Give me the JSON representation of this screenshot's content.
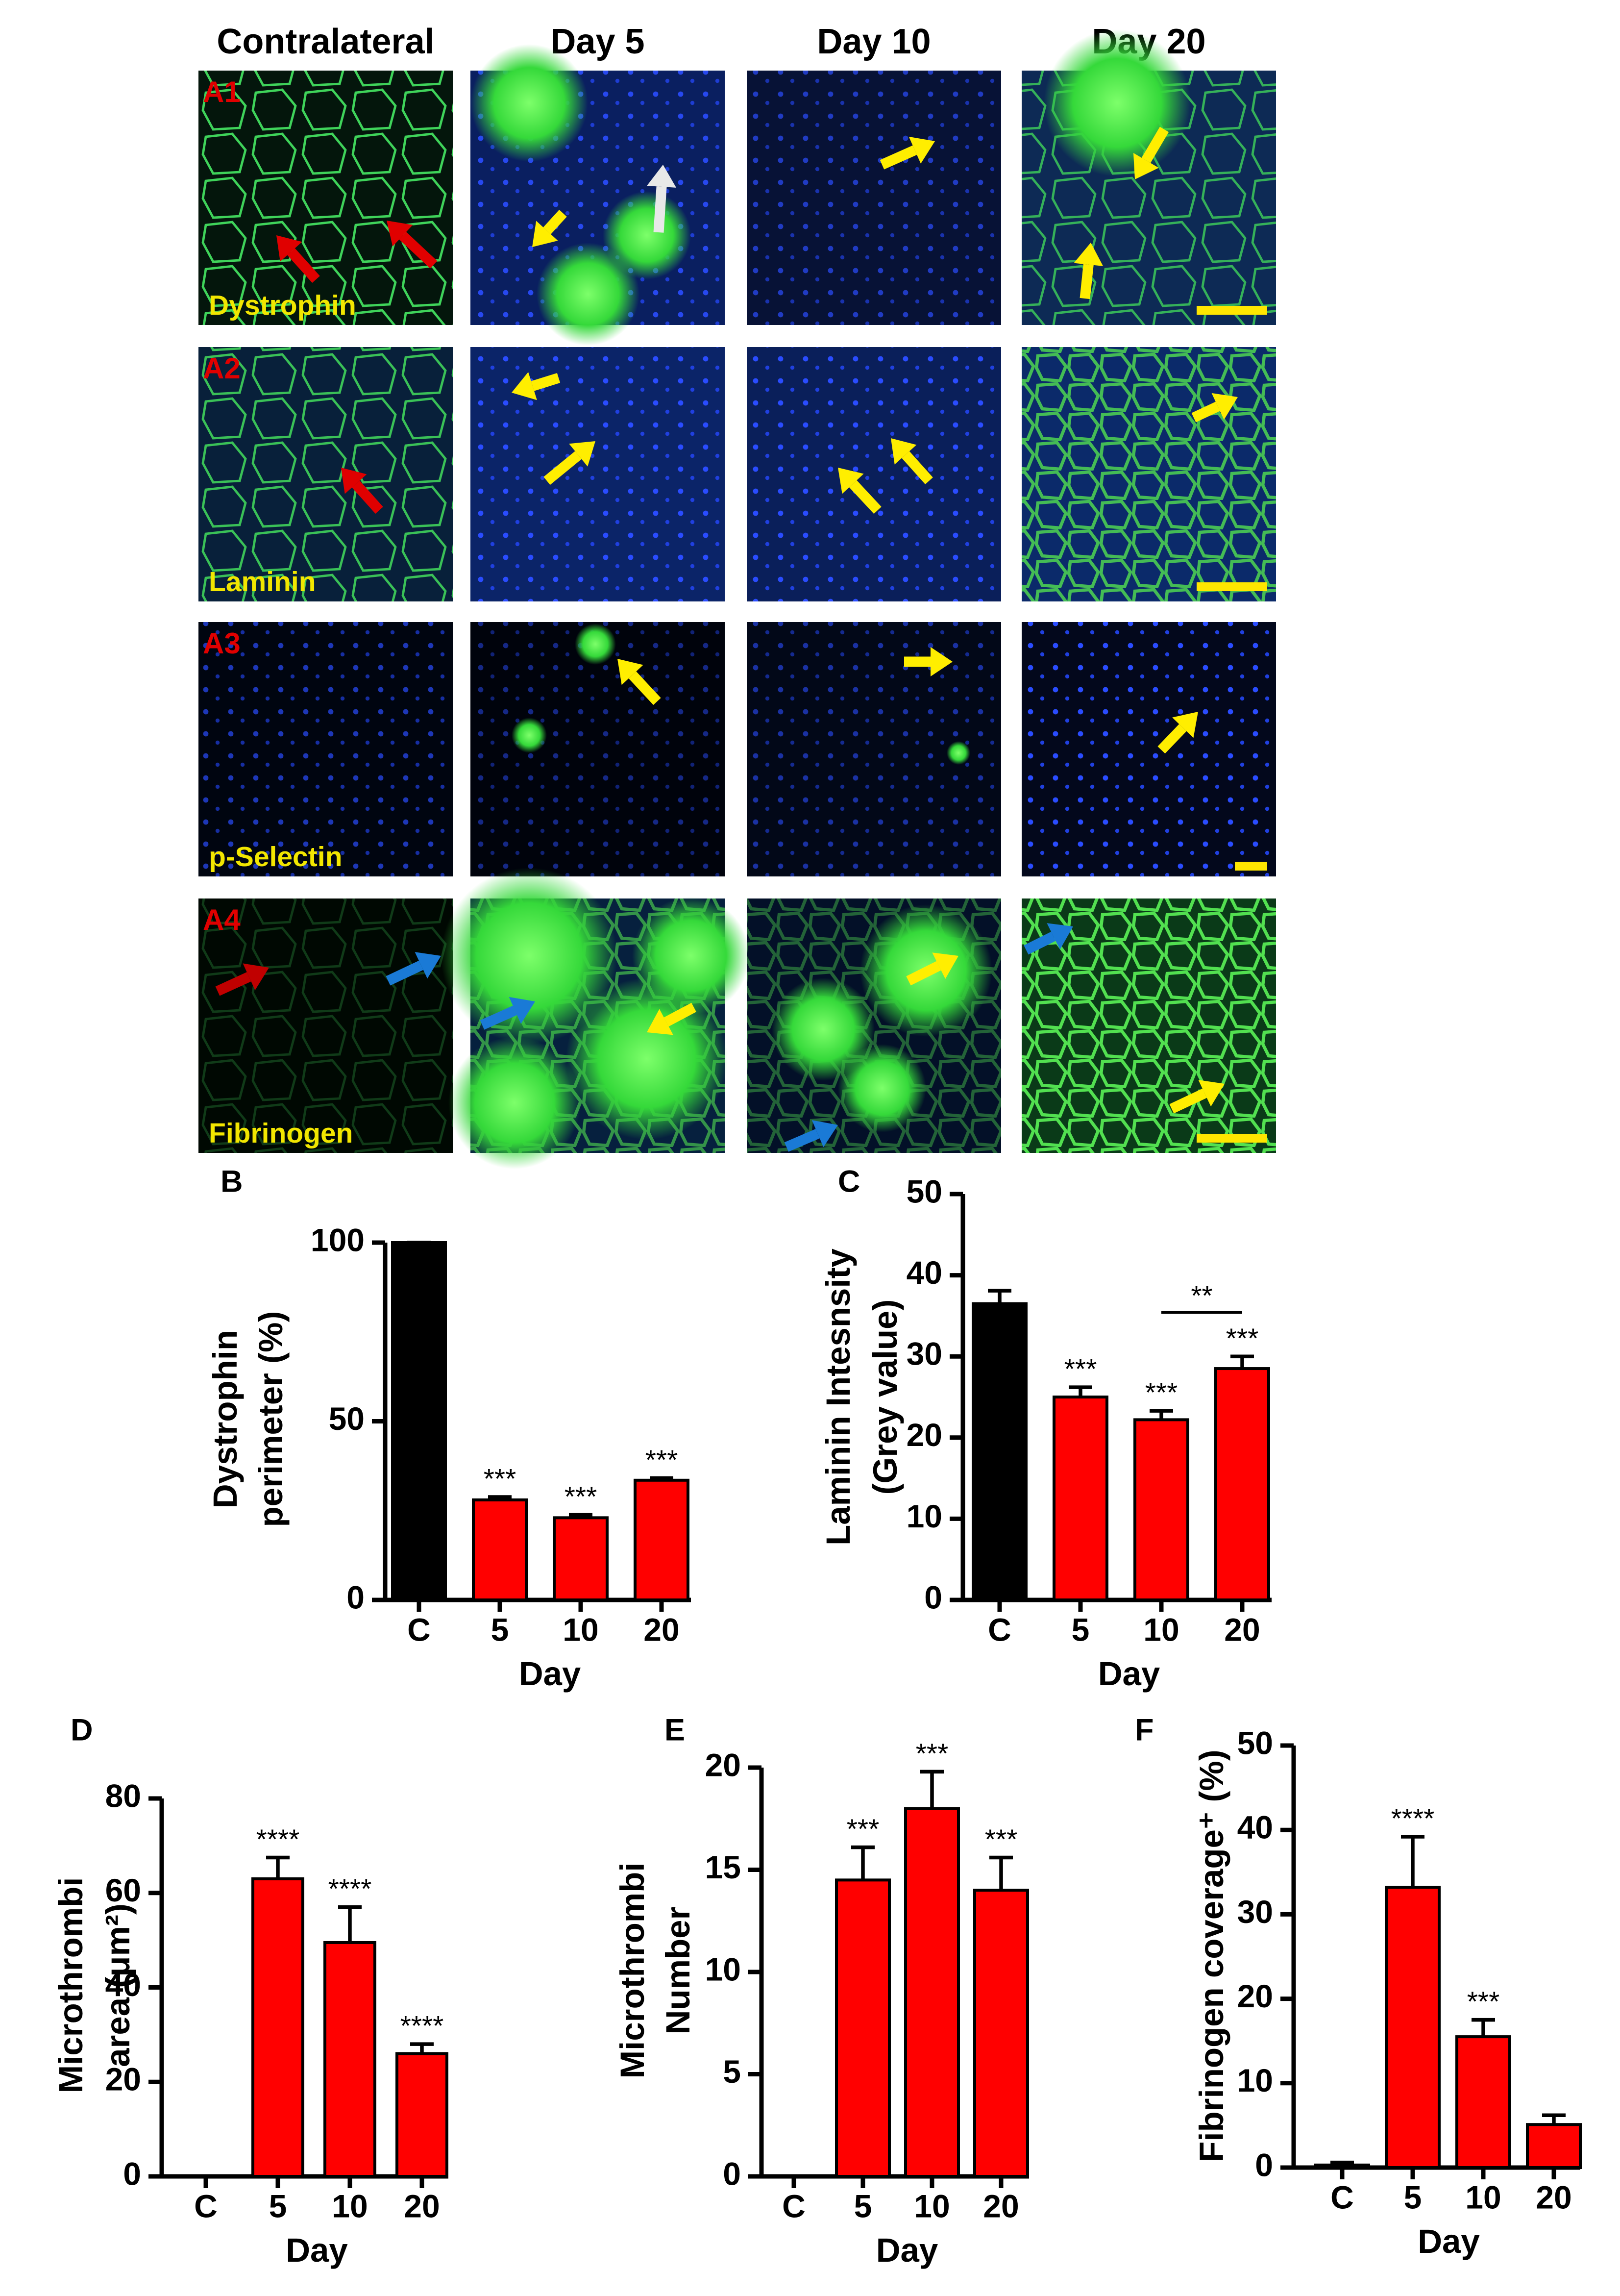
{
  "image_grid": {
    "columns": [
      "Contralateral",
      "Day 5",
      "Day 10",
      "Day 20"
    ],
    "rows": [
      {
        "label": "A1",
        "stain": "Dystrophin"
      },
      {
        "label": "A2",
        "stain": "Laminin"
      },
      {
        "label": "A3",
        "stain": "p-Selectin"
      },
      {
        "label": "A4",
        "stain": "Fibrinogen"
      }
    ]
  },
  "chart_data": [
    {
      "type": "bar",
      "panel": "B",
      "ylabel": [
        "Dystrophin",
        "perimeter (%)"
      ],
      "xlabel": "Day",
      "categories": [
        "C",
        "5",
        "10",
        "20"
      ],
      "values": [
        100,
        28,
        23,
        33.5
      ],
      "errors": [
        0,
        0.8,
        0.8,
        0.6
      ],
      "colors": [
        "#000000",
        "#ff0000",
        "#ff0000",
        "#ff0000"
      ],
      "annotations": [
        null,
        "***",
        "***",
        "***"
      ],
      "ylim": [
        0,
        100
      ],
      "yticks": [
        0,
        50,
        100
      ]
    },
    {
      "type": "bar",
      "panel": "C",
      "ylabel": [
        "Laminin Intesnsity",
        "(Grey value)"
      ],
      "xlabel": "Day",
      "categories": [
        "C",
        "5",
        "10",
        "20"
      ],
      "values": [
        36.5,
        25,
        22.2,
        28.5
      ],
      "errors": [
        1.6,
        1.2,
        1.1,
        1.5
      ],
      "colors": [
        "#000000",
        "#ff0000",
        "#ff0000",
        "#ff0000"
      ],
      "annotations": [
        null,
        "***",
        "***",
        "***"
      ],
      "brackets": [
        {
          "label": "**"
        }
      ],
      "ylim": [
        0,
        50
      ],
      "yticks": [
        0,
        10,
        20,
        30,
        40,
        50
      ]
    },
    {
      "type": "bar",
      "panel": "D",
      "ylabel": [
        "Microthrombi",
        "area (μm²)"
      ],
      "xlabel": "Day",
      "categories": [
        "C",
        "5",
        "10",
        "20"
      ],
      "values": [
        0,
        63,
        49.5,
        26
      ],
      "errors": [
        0,
        4.5,
        7.5,
        2
      ],
      "colors": [
        "#ff0000",
        "#ff0000",
        "#ff0000",
        "#ff0000"
      ],
      "annotations": [
        null,
        "****",
        "****",
        "****"
      ],
      "ylim": [
        0,
        80
      ],
      "yticks": [
        0,
        20,
        40,
        60,
        80
      ]
    },
    {
      "type": "bar",
      "panel": "E",
      "ylabel": [
        "Microthrombi",
        "Number"
      ],
      "xlabel": "Day",
      "categories": [
        "C",
        "5",
        "10",
        "20"
      ],
      "values": [
        0,
        14.5,
        18,
        14
      ],
      "errors": [
        0,
        1.6,
        1.8,
        1.6
      ],
      "colors": [
        "#ff0000",
        "#ff0000",
        "#ff0000",
        "#ff0000"
      ],
      "annotations": [
        null,
        "***",
        "***",
        "***"
      ],
      "ylim": [
        0,
        20
      ],
      "yticks": [
        0,
        5,
        10,
        15,
        20
      ]
    },
    {
      "type": "bar",
      "panel": "F",
      "ylabel": [
        "Fibrinogen coverage⁺ (%)"
      ],
      "xlabel": "Day",
      "categories": [
        "C",
        "5",
        "10",
        "20"
      ],
      "values": [
        0.3,
        33.2,
        15.5,
        5.1
      ],
      "errors": [
        0.3,
        6,
        2,
        1.1
      ],
      "colors": [
        "#ff0000",
        "#ff0000",
        "#ff0000",
        "#ff0000"
      ],
      "annotations": [
        null,
        "****",
        "***",
        null
      ],
      "ylim": [
        0,
        50
      ],
      "yticks": [
        0,
        10,
        20,
        30,
        40,
        50
      ]
    }
  ]
}
